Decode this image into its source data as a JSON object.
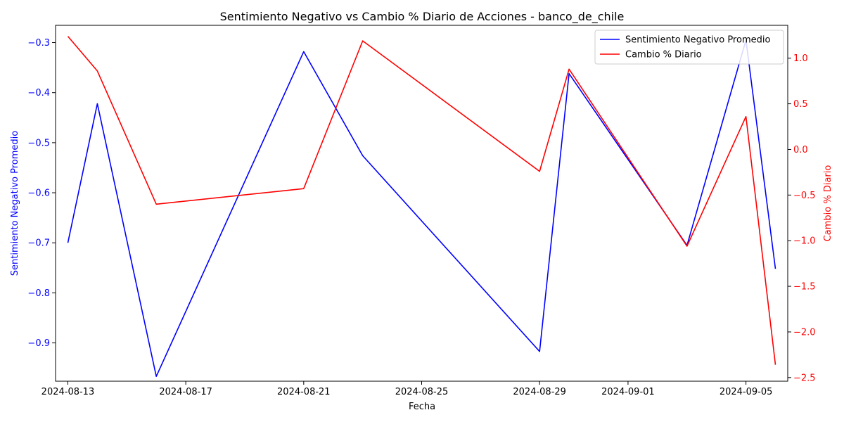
{
  "chart_data": {
    "type": "line",
    "title": "Sentimiento Negativo vs Cambio % Diario de Acciones - banco_de_chile",
    "xlabel": "Fecha",
    "ylabel_left": "Sentimiento Negativo Promedio",
    "ylabel_right": "Cambio % Diario",
    "x_ticks": [
      "2024-08-13",
      "2024-08-17",
      "2024-08-21",
      "2024-08-25",
      "2024-08-29",
      "2024-09-01",
      "2024-09-05"
    ],
    "y_left_ticks": [
      "−0.3",
      "−0.4",
      "−0.5",
      "−0.6",
      "−0.7",
      "−0.8",
      "−0.9"
    ],
    "y_right_ticks": [
      "1.0",
      "0.5",
      "0.0",
      "−0.5",
      "−1.0",
      "−1.5",
      "−2.0",
      "−2.5"
    ],
    "series": [
      {
        "name": "Sentimiento Negativo Promedio",
        "axis": "left",
        "color": "#0000ff",
        "x": [
          "2024-08-13",
          "2024-08-14",
          "2024-08-16",
          "2024-08-21",
          "2024-08-23",
          "2024-08-29",
          "2024-08-30",
          "2024-09-03",
          "2024-09-05",
          "2024-09-06"
        ],
        "values": [
          -0.7,
          -0.422,
          -0.967,
          -0.318,
          -0.526,
          -0.917,
          -0.362,
          -0.705,
          -0.295,
          -0.752
        ]
      },
      {
        "name": "Cambio % Diario",
        "axis": "right",
        "color": "#ff0000",
        "x": [
          "2024-08-13",
          "2024-08-14",
          "2024-08-16",
          "2024-08-21",
          "2024-08-23",
          "2024-08-29",
          "2024-08-30",
          "2024-09-03",
          "2024-09-05",
          "2024-09-06"
        ],
        "values": [
          1.24,
          0.86,
          -0.6,
          -0.43,
          1.19,
          -0.24,
          0.88,
          -1.06,
          0.36,
          -2.36
        ]
      }
    ],
    "x_range": [
      "2024-08-12T14:00",
      "2024-09-06T10:00"
    ],
    "y_left_range": [
      -0.9765,
      -0.2655
    ],
    "y_right_range": [
      -2.54,
      1.36
    ],
    "legend_position": "top-right",
    "grid": false
  }
}
